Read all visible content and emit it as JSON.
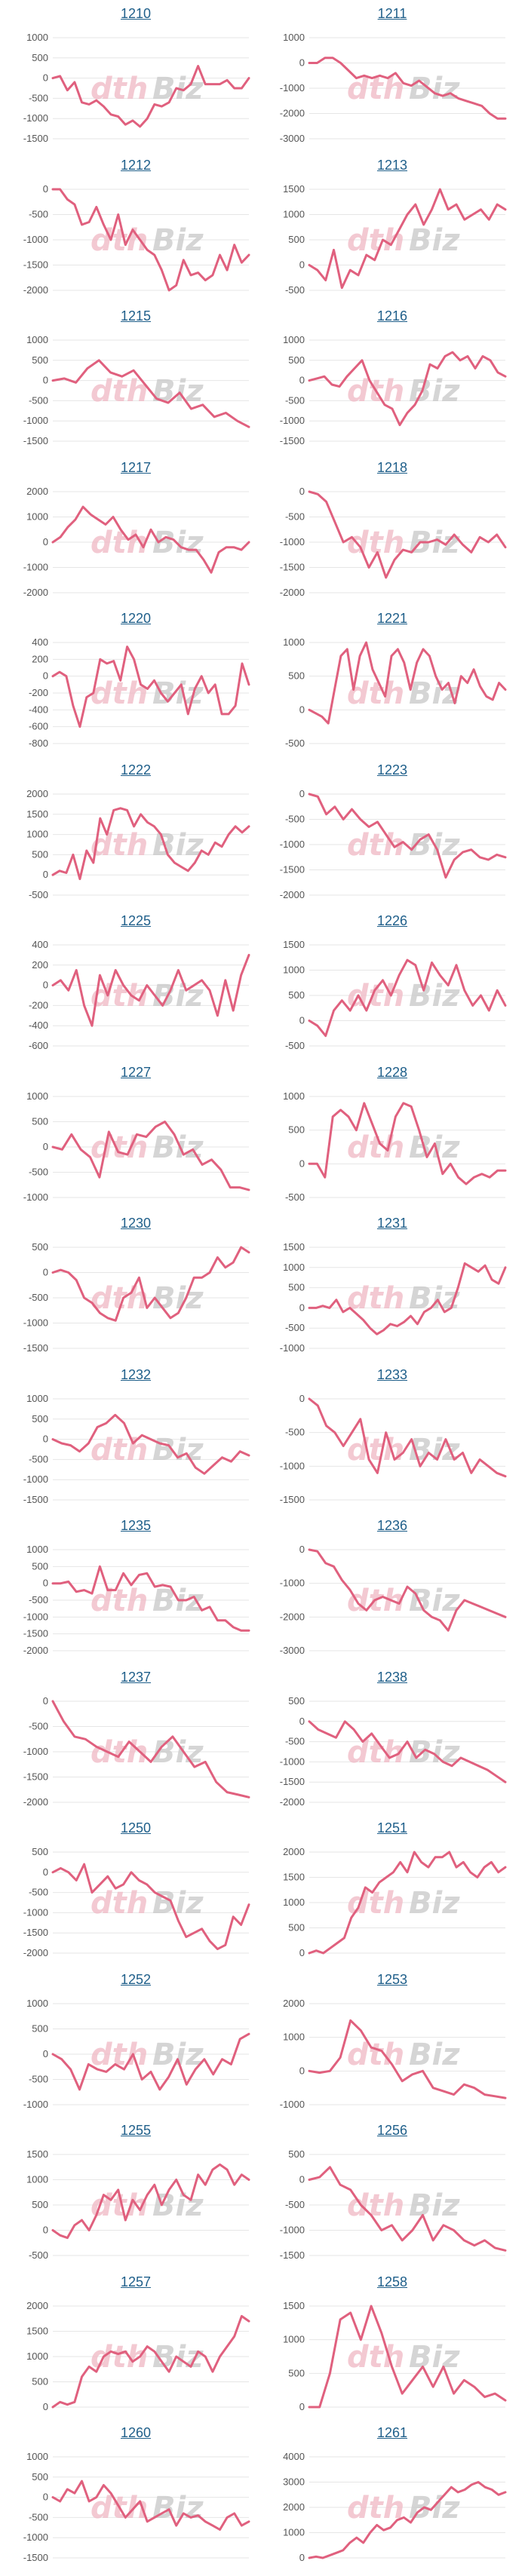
{
  "line_color": "#e0607e",
  "grid_color": "#e6e6e6",
  "title_color": "#1f5f8a",
  "watermark": {
    "part1": "dth",
    "part2": "Biz"
  },
  "chart_data": [
    {
      "type": "line",
      "title": "1210",
      "ylim": [
        -1500,
        1000
      ],
      "yticks": [
        1000,
        500,
        0,
        -500,
        -1000,
        -1500
      ],
      "values": [
        0,
        50,
        -300,
        -100,
        -600,
        -650,
        -550,
        -700,
        -900,
        -950,
        -1150,
        -1050,
        -1200,
        -1000,
        -650,
        -700,
        -600,
        -250,
        -300,
        -150,
        300,
        -150,
        -150,
        -150,
        -50,
        -250,
        -250,
        0
      ]
    },
    {
      "type": "line",
      "title": "1211",
      "ylim": [
        -3000,
        1000
      ],
      "yticks": [
        1000,
        0,
        -1000,
        -2000,
        -3000
      ],
      "values": [
        0,
        0,
        200,
        200,
        0,
        -300,
        -600,
        -500,
        -600,
        -500,
        -600,
        -400,
        -800,
        -900,
        -700,
        -950,
        -1200,
        -1300,
        -1200,
        -1400,
        -1500,
        -1600,
        -1700,
        -2000,
        -2200,
        -2200
      ]
    },
    {
      "type": "line",
      "title": "1212",
      "ylim": [
        -2000,
        0
      ],
      "yticks": [
        0,
        -500,
        -1000,
        -1500,
        -2000
      ],
      "values": [
        0,
        0,
        -200,
        -300,
        -700,
        -650,
        -350,
        -700,
        -1000,
        -500,
        -1100,
        -800,
        -1000,
        -1200,
        -1300,
        -1600,
        -2000,
        -1900,
        -1400,
        -1700,
        -1650,
        -1800,
        -1700,
        -1300,
        -1600,
        -1100,
        -1450,
        -1300
      ]
    },
    {
      "type": "line",
      "title": "1213",
      "ylim": [
        -500,
        1500
      ],
      "yticks": [
        1500,
        1000,
        500,
        0,
        -500
      ],
      "values": [
        0,
        -100,
        -300,
        300,
        -450,
        -100,
        -200,
        200,
        100,
        500,
        400,
        700,
        1000,
        1200,
        800,
        1100,
        1500,
        1100,
        1200,
        900,
        1000,
        1100,
        900,
        1200,
        1100
      ]
    },
    {
      "type": "line",
      "title": "1215",
      "ylim": [
        -1500,
        1000
      ],
      "yticks": [
        1000,
        500,
        0,
        -500,
        -1000,
        -1500
      ],
      "values": [
        0,
        50,
        -50,
        300,
        500,
        200,
        100,
        250,
        -100,
        -450,
        -550,
        -300,
        -700,
        -600,
        -900,
        -800,
        -1000,
        -1150
      ]
    },
    {
      "type": "line",
      "title": "1216",
      "ylim": [
        -1500,
        1000
      ],
      "yticks": [
        1000,
        500,
        0,
        -500,
        -1000,
        -1500
      ],
      "values": [
        0,
        50,
        100,
        -100,
        -150,
        100,
        300,
        500,
        0,
        -300,
        -600,
        -700,
        -1100,
        -800,
        -600,
        -250,
        400,
        300,
        600,
        700,
        500,
        600,
        300,
        600,
        500,
        200,
        100
      ]
    },
    {
      "type": "line",
      "title": "1217",
      "ylim": [
        -2000,
        2000
      ],
      "yticks": [
        2000,
        1000,
        0,
        -1000,
        -2000
      ],
      "values": [
        0,
        200,
        600,
        900,
        1400,
        1100,
        900,
        700,
        1000,
        500,
        100,
        300,
        -200,
        500,
        0,
        200,
        100,
        -200,
        -300,
        -300,
        -700,
        -1200,
        -400,
        -200,
        -200,
        -300,
        0
      ]
    },
    {
      "type": "line",
      "title": "1218",
      "ylim": [
        -2000,
        0
      ],
      "yticks": [
        0,
        -500,
        -1000,
        -1500,
        -2000
      ],
      "values": [
        0,
        -50,
        -200,
        -600,
        -1000,
        -900,
        -1100,
        -1500,
        -1200,
        -1700,
        -1350,
        -1150,
        -1200,
        -1000,
        -1000,
        -950,
        -1050,
        -850,
        -1050,
        -1200,
        -900,
        -1000,
        -850,
        -1100
      ]
    },
    {
      "type": "line",
      "title": "1220",
      "ylim": [
        -800,
        400
      ],
      "yticks": [
        400,
        200,
        0,
        -200,
        -400,
        -600,
        -800
      ],
      "values": [
        0,
        50,
        0,
        -350,
        -600,
        -250,
        -200,
        200,
        150,
        180,
        -50,
        350,
        200,
        -100,
        -150,
        -50,
        -200,
        -300,
        -200,
        -100,
        -450,
        -150,
        0,
        -200,
        -100,
        -450,
        -450,
        -350,
        150,
        -100
      ]
    },
    {
      "type": "line",
      "title": "1221",
      "ylim": [
        -500,
        1000
      ],
      "yticks": [
        1000,
        500,
        0,
        -500
      ],
      "values": [
        0,
        -50,
        -100,
        -200,
        300,
        800,
        900,
        300,
        800,
        1000,
        600,
        400,
        200,
        800,
        900,
        700,
        300,
        700,
        900,
        800,
        500,
        300,
        400,
        100,
        500,
        400,
        600,
        350,
        200,
        150,
        400,
        300
      ]
    },
    {
      "type": "line",
      "title": "1222",
      "ylim": [
        -500,
        2000
      ],
      "yticks": [
        2000,
        1500,
        1000,
        500,
        0,
        -500
      ],
      "values": [
        0,
        100,
        50,
        500,
        -100,
        600,
        300,
        1400,
        1000,
        1600,
        1650,
        1600,
        1200,
        1500,
        1300,
        1200,
        1000,
        500,
        300,
        200,
        100,
        300,
        600,
        500,
        800,
        700,
        1000,
        1200,
        1050,
        1200
      ]
    },
    {
      "type": "line",
      "title": "1223",
      "ylim": [
        -2000,
        0
      ],
      "yticks": [
        0,
        -500,
        -1000,
        -1500,
        -2000
      ],
      "values": [
        0,
        -50,
        -400,
        -250,
        -500,
        -300,
        -500,
        -650,
        -550,
        -800,
        -1050,
        -950,
        -1100,
        -900,
        -800,
        -1100,
        -1650,
        -1300,
        -1150,
        -1100,
        -1250,
        -1300,
        -1200,
        -1250
      ]
    },
    {
      "type": "line",
      "title": "1225",
      "ylim": [
        -600,
        400
      ],
      "yticks": [
        400,
        200,
        0,
        -200,
        -400,
        -600
      ],
      "values": [
        0,
        50,
        -50,
        150,
        -200,
        -400,
        100,
        -100,
        150,
        0,
        -100,
        -150,
        0,
        -100,
        -200,
        -50,
        150,
        -50,
        0,
        50,
        -50,
        -300,
        50,
        -250,
        100,
        300
      ]
    },
    {
      "type": "line",
      "title": "1226",
      "ylim": [
        -500,
        1500
      ],
      "yticks": [
        1500,
        1000,
        500,
        0,
        -500
      ],
      "values": [
        0,
        -100,
        -300,
        200,
        400,
        200,
        500,
        200,
        600,
        800,
        500,
        900,
        1200,
        1100,
        600,
        1150,
        900,
        700,
        1100,
        600,
        300,
        500,
        200,
        600,
        300
      ]
    },
    {
      "type": "line",
      "title": "1227",
      "ylim": [
        -1000,
        1000
      ],
      "yticks": [
        1000,
        500,
        0,
        -500,
        -1000
      ],
      "values": [
        0,
        -50,
        250,
        -50,
        -200,
        -600,
        300,
        -100,
        -150,
        250,
        200,
        400,
        500,
        250,
        -150,
        -50,
        -350,
        -250,
        -450,
        -800,
        -800,
        -850
      ]
    },
    {
      "type": "line",
      "title": "1228",
      "ylim": [
        -500,
        1000
      ],
      "yticks": [
        1000,
        500,
        0,
        -500
      ],
      "values": [
        0,
        0,
        -200,
        700,
        800,
        700,
        500,
        900,
        600,
        300,
        200,
        700,
        900,
        850,
        500,
        100,
        300,
        -150,
        0,
        -200,
        -300,
        -200,
        -150,
        -200,
        -100,
        -100
      ]
    },
    {
      "type": "line",
      "title": "1230",
      "ylim": [
        -1500,
        500
      ],
      "yticks": [
        500,
        0,
        -500,
        -1000,
        -1500
      ],
      "values": [
        0,
        50,
        0,
        -150,
        -500,
        -600,
        -800,
        -900,
        -950,
        -500,
        -400,
        -100,
        -700,
        -500,
        -700,
        -900,
        -800,
        -500,
        -100,
        -100,
        0,
        300,
        100,
        200,
        500,
        400
      ]
    },
    {
      "type": "line",
      "title": "1231",
      "ylim": [
        -1000,
        1500
      ],
      "yticks": [
        1500,
        1000,
        500,
        0,
        -500,
        -1000
      ],
      "values": [
        0,
        0,
        50,
        0,
        200,
        -100,
        0,
        -150,
        -300,
        -500,
        -650,
        -550,
        -400,
        -450,
        -350,
        -200,
        -400,
        -100,
        0,
        200,
        -100,
        0,
        500,
        1100,
        1000,
        900,
        1050,
        700,
        600,
        1000
      ]
    },
    {
      "type": "line",
      "title": "1232",
      "ylim": [
        -1500,
        1000
      ],
      "yticks": [
        1000,
        500,
        0,
        -500,
        -1000,
        -1500
      ],
      "values": [
        0,
        -100,
        -150,
        -300,
        -100,
        300,
        400,
        600,
        400,
        -100,
        100,
        0,
        -100,
        -150,
        -450,
        -350,
        -700,
        -850,
        -650,
        -450,
        -550,
        -300,
        -400
      ]
    },
    {
      "type": "line",
      "title": "1233",
      "ylim": [
        -1500,
        0
      ],
      "yticks": [
        0,
        -500,
        -1000,
        -1500
      ],
      "values": [
        0,
        -100,
        -400,
        -500,
        -700,
        -500,
        -300,
        -900,
        -1100,
        -500,
        -900,
        -800,
        -600,
        -1000,
        -800,
        -900,
        -600,
        -900,
        -800,
        -1100,
        -900,
        -1000,
        -1100,
        -1150
      ]
    },
    {
      "type": "line",
      "title": "1235",
      "ylim": [
        -2000,
        1000
      ],
      "yticks": [
        1000,
        500,
        0,
        -500,
        -1000,
        -1500,
        -2000
      ],
      "values": [
        0,
        0,
        50,
        -250,
        -200,
        -300,
        500,
        -200,
        -200,
        300,
        -50,
        250,
        300,
        -100,
        -50,
        -100,
        -500,
        -500,
        -400,
        -800,
        -700,
        -1100,
        -1100,
        -1300,
        -1400,
        -1400
      ]
    },
    {
      "type": "line",
      "title": "1236",
      "ylim": [
        -3000,
        0
      ],
      "yticks": [
        0,
        -1000,
        -2000,
        -3000
      ],
      "values": [
        0,
        -50,
        -400,
        -500,
        -900,
        -1200,
        -1600,
        -1800,
        -1500,
        -1400,
        -1500,
        -1600,
        -1100,
        -1300,
        -1800,
        -2000,
        -2100,
        -2400,
        -1800,
        -1500,
        -1600,
        -1700,
        -1800,
        -1900,
        -2000
      ]
    },
    {
      "type": "line",
      "title": "1237",
      "ylim": [
        -2000,
        0
      ],
      "yticks": [
        0,
        -500,
        -1000,
        -1500,
        -2000
      ],
      "values": [
        0,
        -400,
        -700,
        -750,
        -900,
        -1000,
        -1100,
        -800,
        -1000,
        -1200,
        -900,
        -700,
        -1000,
        -1300,
        -1200,
        -1600,
        -1800,
        -1850,
        -1900
      ]
    },
    {
      "type": "line",
      "title": "1238",
      "ylim": [
        -2000,
        500
      ],
      "yticks": [
        500,
        0,
        -500,
        -1000,
        -1500,
        -2000
      ],
      "values": [
        0,
        -200,
        -300,
        -400,
        0,
        -200,
        -500,
        -300,
        -600,
        -900,
        -800,
        -500,
        -900,
        -700,
        -800,
        -1000,
        -1100,
        -900,
        -1000,
        -1100,
        -1200,
        -1350,
        -1500
      ]
    },
    {
      "type": "line",
      "title": "1250",
      "ylim": [
        -2000,
        500
      ],
      "yticks": [
        500,
        0,
        -500,
        -1000,
        -1500,
        -2000
      ],
      "values": [
        0,
        100,
        0,
        -200,
        200,
        -500,
        -300,
        -100,
        -400,
        -300,
        0,
        -200,
        -300,
        -500,
        -600,
        -700,
        -1200,
        -1600,
        -1500,
        -1400,
        -1700,
        -1900,
        -1800,
        -1100,
        -1300,
        -800
      ]
    },
    {
      "type": "line",
      "title": "1251",
      "ylim": [
        0,
        2000
      ],
      "yticks": [
        2000,
        1500,
        1000,
        500,
        0
      ],
      "values": [
        0,
        50,
        0,
        100,
        200,
        300,
        700,
        900,
        1300,
        1200,
        1400,
        1500,
        1600,
        1800,
        1600,
        2000,
        1800,
        1700,
        1900,
        1900,
        2000,
        1700,
        1800,
        1600,
        1500,
        1700,
        1800,
        1600,
        1700
      ]
    },
    {
      "type": "line",
      "title": "1252",
      "ylim": [
        -1000,
        1000
      ],
      "yticks": [
        1000,
        500,
        0,
        -500,
        -1000
      ],
      "values": [
        0,
        -100,
        -300,
        -700,
        -200,
        -300,
        -350,
        -200,
        -300,
        0,
        -500,
        -350,
        -700,
        -450,
        -100,
        -600,
        -300,
        -100,
        -400,
        -100,
        -200,
        300,
        400
      ]
    },
    {
      "type": "line",
      "title": "1253",
      "ylim": [
        -1000,
        2000
      ],
      "yticks": [
        2000,
        1000,
        0,
        -1000
      ],
      "values": [
        0,
        -50,
        0,
        400,
        1500,
        1200,
        700,
        600,
        200,
        -300,
        -100,
        0,
        -500,
        -600,
        -700,
        -400,
        -500,
        -700,
        -750,
        -800
      ]
    },
    {
      "type": "line",
      "title": "1255",
      "ylim": [
        -500,
        1500
      ],
      "yticks": [
        1500,
        1000,
        500,
        0,
        -500
      ],
      "values": [
        0,
        -100,
        -150,
        100,
        200,
        0,
        300,
        700,
        600,
        800,
        200,
        600,
        400,
        700,
        900,
        500,
        800,
        1000,
        700,
        600,
        1100,
        900,
        1200,
        1300,
        1200,
        900,
        1100,
        1000
      ]
    },
    {
      "type": "line",
      "title": "1256",
      "ylim": [
        -1500,
        500
      ],
      "yticks": [
        500,
        0,
        -500,
        -1000,
        -1500
      ],
      "values": [
        0,
        50,
        250,
        -100,
        -200,
        -500,
        -700,
        -1000,
        -900,
        -1200,
        -1000,
        -700,
        -1200,
        -900,
        -1000,
        -1200,
        -1300,
        -1200,
        -1350,
        -1400
      ]
    },
    {
      "type": "line",
      "title": "1257",
      "ylim": [
        0,
        2000
      ],
      "yticks": [
        2000,
        1500,
        1000,
        500,
        0
      ],
      "values": [
        0,
        100,
        50,
        100,
        600,
        800,
        700,
        1000,
        1100,
        1050,
        1100,
        900,
        1000,
        1200,
        1100,
        900,
        700,
        1000,
        900,
        800,
        1100,
        1000,
        700,
        1000,
        1200,
        1400,
        1800,
        1700
      ]
    },
    {
      "type": "line",
      "title": "1258",
      "ylim": [
        0,
        1500
      ],
      "yticks": [
        1500,
        1000,
        500,
        0
      ],
      "values": [
        0,
        0,
        500,
        1300,
        1400,
        1000,
        1500,
        1100,
        600,
        200,
        400,
        600,
        300,
        600,
        200,
        400,
        300,
        150,
        200,
        100
      ]
    },
    {
      "type": "line",
      "title": "1260",
      "ylim": [
        -1500,
        1000
      ],
      "yticks": [
        1000,
        500,
        0,
        -500,
        -1000,
        -1500
      ],
      "values": [
        0,
        -100,
        200,
        100,
        400,
        -100,
        0,
        300,
        100,
        -200,
        -500,
        -300,
        -100,
        -600,
        -500,
        -400,
        -300,
        -700,
        -400,
        -500,
        -450,
        -600,
        -700,
        -800,
        -500,
        -400,
        -700,
        -600
      ]
    },
    {
      "type": "line",
      "title": "1261",
      "ylim": [
        0,
        4000
      ],
      "yticks": [
        4000,
        3000,
        2000,
        1000,
        0
      ],
      "values": [
        0,
        50,
        0,
        100,
        200,
        300,
        600,
        800,
        600,
        1000,
        1300,
        1100,
        1200,
        1500,
        1600,
        1400,
        1800,
        2000,
        1900,
        2200,
        2500,
        2800,
        2600,
        2700,
        2900,
        3000,
        2800,
        2700,
        2500,
        2600
      ]
    }
  ]
}
